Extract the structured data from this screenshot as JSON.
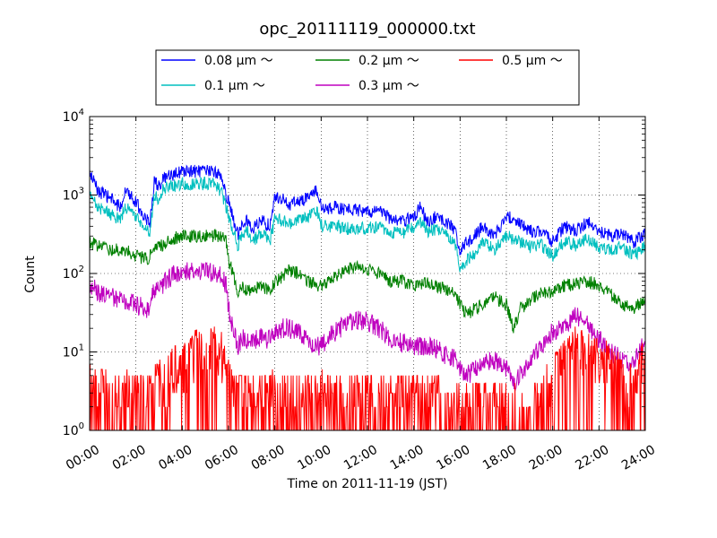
{
  "chart_data": {
    "type": "line",
    "title": "opc_20111119_000000.txt",
    "xlabel": "Time on 2011-11-19 (JST)",
    "ylabel": "Count",
    "x_unit": "hours",
    "xlim": [
      0,
      24
    ],
    "ylim": [
      1,
      10000
    ],
    "yscale": "log",
    "grid": true,
    "legend_position": "top, above plot",
    "x_ticks": [
      {
        "v": 0,
        "label": "00:00"
      },
      {
        "v": 2,
        "label": "02:00"
      },
      {
        "v": 4,
        "label": "04:00"
      },
      {
        "v": 6,
        "label": "06:00"
      },
      {
        "v": 8,
        "label": "08:00"
      },
      {
        "v": 10,
        "label": "10:00"
      },
      {
        "v": 12,
        "label": "12:00"
      },
      {
        "v": 14,
        "label": "14:00"
      },
      {
        "v": 16,
        "label": "16:00"
      },
      {
        "v": 18,
        "label": "18:00"
      },
      {
        "v": 20,
        "label": "20:00"
      },
      {
        "v": 22,
        "label": "22:00"
      },
      {
        "v": 24,
        "label": "24:00"
      }
    ],
    "y_ticks": [
      {
        "v": 1,
        "base": "10",
        "exp": "0"
      },
      {
        "v": 10,
        "base": "10",
        "exp": "1"
      },
      {
        "v": 100,
        "base": "10",
        "exp": "2"
      },
      {
        "v": 1000,
        "base": "10",
        "exp": "3"
      },
      {
        "v": 10000,
        "base": "10",
        "exp": "4"
      }
    ],
    "series": [
      {
        "name": "0.08 μm ～",
        "color": "#0000ff",
        "noise_log": 0.06,
        "x": [
          0,
          0.4,
          0.8,
          1.0,
          1.3,
          1.6,
          1.9,
          2.2,
          2.4,
          2.6,
          2.8,
          3.0,
          3.2,
          3.6,
          4.0,
          4.5,
          5.0,
          5.4,
          5.7,
          5.9,
          6.0,
          6.2,
          6.4,
          6.6,
          6.8,
          7.0,
          7.4,
          7.8,
          8.0,
          8.3,
          8.6,
          9.0,
          9.4,
          9.8,
          10.0,
          10.3,
          10.6,
          11.0,
          11.5,
          12.0,
          12.5,
          13.0,
          13.5,
          14.0,
          14.3,
          14.6,
          15.0,
          15.4,
          15.8,
          16.0,
          16.3,
          16.6,
          17.0,
          17.5,
          18.0,
          18.5,
          19.0,
          19.5,
          20.0,
          20.5,
          21.0,
          21.5,
          22.0,
          22.5,
          23.0,
          23.5,
          24.0
        ],
        "y": [
          1900,
          1100,
          950,
          850,
          700,
          1200,
          900,
          650,
          500,
          450,
          1500,
          1300,
          1600,
          1800,
          2000,
          2000,
          2000,
          2000,
          1700,
          1000,
          800,
          500,
          320,
          450,
          500,
          350,
          480,
          400,
          950,
          900,
          750,
          850,
          900,
          1200,
          700,
          650,
          700,
          650,
          650,
          600,
          650,
          500,
          450,
          550,
          700,
          450,
          550,
          450,
          350,
          200,
          250,
          300,
          400,
          300,
          550,
          450,
          350,
          350,
          250,
          400,
          350,
          450,
          350,
          300,
          320,
          250,
          330
        ]
      },
      {
        "name": "0.1 μm ～",
        "color": "#00bfbf",
        "noise_log": 0.06,
        "x": [
          0,
          0.4,
          0.8,
          1.0,
          1.3,
          1.6,
          1.9,
          2.2,
          2.4,
          2.6,
          2.8,
          3.0,
          3.2,
          3.6,
          4.0,
          4.5,
          5.0,
          5.4,
          5.7,
          5.9,
          6.0,
          6.2,
          6.4,
          6.6,
          6.8,
          7.0,
          7.4,
          7.8,
          8.0,
          8.3,
          8.6,
          9.0,
          9.4,
          9.8,
          10.0,
          10.3,
          10.6,
          11.0,
          11.5,
          12.0,
          12.5,
          13.0,
          13.5,
          14.0,
          14.3,
          14.6,
          15.0,
          15.4,
          15.8,
          16.0,
          16.3,
          16.6,
          17.0,
          17.5,
          18.0,
          18.5,
          19.0,
          19.5,
          20.0,
          20.5,
          21.0,
          21.5,
          22.0,
          22.5,
          23.0,
          23.5,
          24.0
        ],
        "y": [
          1000,
          700,
          600,
          550,
          500,
          700,
          550,
          450,
          380,
          330,
          1000,
          900,
          1200,
          1300,
          1400,
          1400,
          1400,
          1400,
          1100,
          700,
          500,
          350,
          230,
          300,
          350,
          250,
          330,
          260,
          500,
          480,
          420,
          470,
          500,
          650,
          420,
          380,
          400,
          380,
          370,
          380,
          400,
          330,
          320,
          380,
          450,
          330,
          370,
          300,
          230,
          120,
          150,
          180,
          250,
          200,
          300,
          260,
          220,
          230,
          170,
          260,
          230,
          280,
          220,
          200,
          220,
          170,
          230
        ]
      },
      {
        "name": "0.2 μm ～",
        "color": "#008000",
        "noise_log": 0.06,
        "x": [
          0,
          0.5,
          1.0,
          1.5,
          2.0,
          2.5,
          2.8,
          3.0,
          3.3,
          3.6,
          4.0,
          4.5,
          5.0,
          5.4,
          5.7,
          5.9,
          6.0,
          6.2,
          6.4,
          6.6,
          6.8,
          7.0,
          7.4,
          7.8,
          8.0,
          8.3,
          8.6,
          9.0,
          9.4,
          9.8,
          10.0,
          10.3,
          10.6,
          11.0,
          11.5,
          12.0,
          12.5,
          13.0,
          13.5,
          14.0,
          14.5,
          15.0,
          15.4,
          15.8,
          16.0,
          16.3,
          16.6,
          17.0,
          17.5,
          18.0,
          18.3,
          18.6,
          19.0,
          19.5,
          20.0,
          20.5,
          21.0,
          21.5,
          22.0,
          22.5,
          23.0,
          23.5,
          24.0
        ],
        "y": [
          250,
          220,
          200,
          200,
          170,
          150,
          200,
          220,
          250,
          280,
          300,
          300,
          300,
          300,
          300,
          250,
          150,
          100,
          60,
          70,
          60,
          60,
          70,
          60,
          80,
          90,
          110,
          100,
          80,
          70,
          70,
          80,
          90,
          110,
          120,
          110,
          100,
          80,
          80,
          70,
          75,
          70,
          60,
          55,
          40,
          30,
          35,
          40,
          50,
          40,
          20,
          35,
          45,
          55,
          60,
          70,
          75,
          80,
          70,
          55,
          40,
          35,
          50
        ]
      },
      {
        "name": "0.3 μm ～",
        "color": "#bf00bf",
        "noise_log": 0.09,
        "x": [
          0,
          0.5,
          1.0,
          1.5,
          2.0,
          2.5,
          2.8,
          3.0,
          3.3,
          3.6,
          4.0,
          4.5,
          5.0,
          5.4,
          5.7,
          5.9,
          6.0,
          6.2,
          6.4,
          6.6,
          6.8,
          7.0,
          7.4,
          7.8,
          8.0,
          8.3,
          8.6,
          9.0,
          9.4,
          9.8,
          10.0,
          10.3,
          10.6,
          11.0,
          11.5,
          12.0,
          12.5,
          13.0,
          13.5,
          14.0,
          14.5,
          15.0,
          15.4,
          15.8,
          16.0,
          16.3,
          16.6,
          17.0,
          17.5,
          18.0,
          18.3,
          18.6,
          19.0,
          19.5,
          20.0,
          20.5,
          21.0,
          21.5,
          22.0,
          22.5,
          23.0,
          23.5,
          24.0
        ],
        "y": [
          70,
          55,
          50,
          45,
          40,
          35,
          60,
          65,
          80,
          95,
          110,
          110,
          110,
          100,
          90,
          70,
          35,
          20,
          12,
          15,
          14,
          13,
          16,
          14,
          18,
          20,
          20,
          18,
          14,
          12,
          12,
          15,
          18,
          22,
          25,
          25,
          20,
          15,
          13,
          12,
          12,
          11,
          9,
          8,
          6,
          5,
          6,
          7,
          8,
          6,
          4,
          5,
          8,
          12,
          18,
          22,
          30,
          22,
          15,
          10,
          8,
          7,
          14
        ]
      },
      {
        "name": "0.5 μm ～",
        "color": "#ff0000",
        "noise_log": 0.0,
        "spiky": true,
        "x": [
          0,
          1.0,
          2.0,
          2.5,
          3.0,
          3.5,
          4.0,
          4.5,
          5.0,
          5.5,
          5.8,
          6.0,
          6.2,
          6.5,
          7.0,
          8.0,
          9.0,
          10.0,
          11.0,
          12.0,
          13.0,
          14.0,
          15.0,
          16.0,
          17.0,
          18.0,
          18.5,
          19.0,
          19.5,
          20.0,
          20.5,
          21.0,
          21.5,
          22.0,
          22.5,
          23.0,
          23.5,
          24.0
        ],
        "y": [
          4,
          3,
          3,
          3,
          4,
          6,
          8,
          10,
          12,
          12,
          10,
          7,
          3,
          3,
          3,
          3,
          3,
          3,
          3,
          3,
          3,
          3,
          3,
          2.5,
          2.5,
          2,
          2,
          2.5,
          3,
          5,
          8,
          12,
          10,
          8,
          7,
          5,
          4,
          10
        ]
      }
    ]
  }
}
